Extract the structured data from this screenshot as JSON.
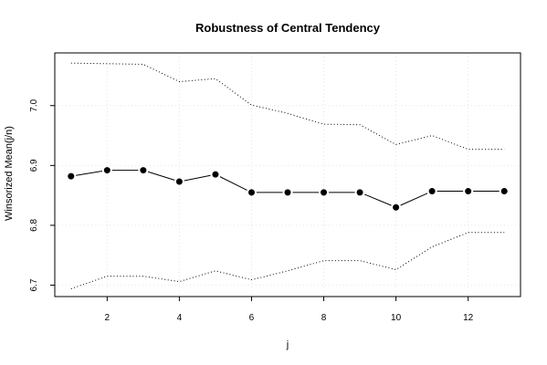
{
  "chart_data": {
    "type": "line",
    "title": "Robustness of Central Tendency",
    "xlabel": "j",
    "ylabel": "Winsorized Mean(j/n)",
    "xlim": [
      0.55,
      13.45
    ],
    "ylim": [
      6.681,
      7.088
    ],
    "x_ticks": [
      2,
      4,
      6,
      8,
      10,
      12
    ],
    "y_ticks": [
      6.7,
      6.8,
      6.9,
      7.0
    ],
    "y_tick_labels": [
      "6.7",
      "6.8",
      "6.9",
      "7.0"
    ],
    "grid": true,
    "x": [
      1,
      2,
      3,
      4,
      5,
      6,
      7,
      8,
      9,
      10,
      11,
      12,
      13
    ],
    "series": [
      {
        "style": "solid-with-points",
        "values": [
          6.882,
          6.892,
          6.892,
          6.873,
          6.885,
          6.855,
          6.855,
          6.855,
          6.855,
          6.83,
          6.857,
          6.857,
          6.857
        ]
      },
      {
        "style": "dotted",
        "values": [
          7.071,
          7.07,
          7.069,
          7.04,
          7.045,
          7.001,
          6.987,
          6.969,
          6.968,
          6.935,
          6.95,
          6.927,
          6.927
        ]
      },
      {
        "style": "dotted",
        "values": [
          6.694,
          6.715,
          6.715,
          6.706,
          6.724,
          6.709,
          6.724,
          6.741,
          6.741,
          6.726,
          6.764,
          6.788,
          6.788
        ]
      }
    ],
    "colors": {
      "line": "#000000",
      "grid": "#e6e6e6",
      "background": "#ffffff"
    }
  }
}
